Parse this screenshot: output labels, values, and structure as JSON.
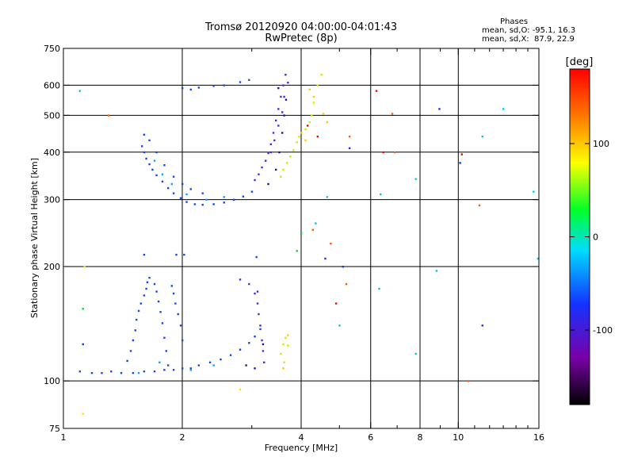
{
  "chart_data": {
    "type": "scatter",
    "title": "Tromsø 20120920 04:00:00-04:01:43",
    "subtitle": "RwPretec (8p)",
    "xlabel": "Frequency [MHz]",
    "ylabel": "Stationary phase Virtual Height [km]",
    "xscale": "log",
    "yscale": "log",
    "xlim": [
      1,
      16
    ],
    "ylim": [
      75,
      750
    ],
    "x_ticks": [
      {
        "value": 1,
        "label": "1"
      },
      {
        "value": 2,
        "label": "2"
      },
      {
        "value": 4,
        "label": "4"
      },
      {
        "value": 6,
        "label": "6"
      },
      {
        "value": 8,
        "label": "8"
      },
      {
        "value": 10,
        "label": "10"
      },
      {
        "value": 16,
        "label": "16"
      }
    ],
    "x_minor_ticks": [
      3,
      5,
      7,
      9,
      11,
      12,
      13,
      14,
      15
    ],
    "y_ticks": [
      {
        "value": 75,
        "label": "75"
      },
      {
        "value": 100,
        "label": "100"
      },
      {
        "value": 200,
        "label": "200"
      },
      {
        "value": 300,
        "label": "300"
      },
      {
        "value": 400,
        "label": "400"
      },
      {
        "value": 500,
        "label": "500"
      },
      {
        "value": 600,
        "label": "600"
      },
      {
        "value": 750,
        "label": "750"
      }
    ],
    "grid_x": [
      2,
      4,
      6,
      8,
      10
    ],
    "grid_y": [
      100,
      200,
      300,
      400,
      500,
      600
    ],
    "stats": {
      "heading": "Phases",
      "line1": "mean, sd,O: -95.1, 16.3",
      "line2": "mean, sd,X:  87.9, 22.9"
    },
    "colorbar": {
      "label": "[deg]",
      "range": [
        -180,
        180
      ],
      "ticks": [
        {
          "value": 100,
          "label": "100"
        },
        {
          "value": 0,
          "label": "0"
        },
        {
          "value": -100,
          "label": "-100"
        }
      ],
      "colors": [
        "#000000",
        "#7a00a8",
        "#1432ff",
        "#00dcff",
        "#00ff28",
        "#ffff00",
        "#ff7800",
        "#ff0000"
      ]
    },
    "series": [
      {
        "color": "#1446ee",
        "points": [
          [
            1.1,
            106
          ],
          [
            1.18,
            105
          ],
          [
            1.25,
            105
          ],
          [
            1.32,
            106
          ],
          [
            1.4,
            105
          ],
          [
            1.5,
            105
          ],
          [
            1.6,
            106
          ],
          [
            1.7,
            106
          ],
          [
            1.8,
            107
          ],
          [
            1.9,
            107
          ],
          [
            2.0,
            108
          ],
          [
            2.1,
            108
          ],
          [
            2.2,
            110
          ],
          [
            2.35,
            112
          ],
          [
            2.5,
            114
          ],
          [
            2.65,
            117
          ],
          [
            2.8,
            121
          ],
          [
            2.95,
            126
          ],
          [
            3.05,
            131
          ],
          [
            3.15,
            137
          ],
          [
            1.45,
            113
          ],
          [
            1.48,
            120
          ],
          [
            1.5,
            128
          ],
          [
            1.52,
            136
          ],
          [
            1.53,
            145
          ],
          [
            1.55,
            153
          ],
          [
            1.57,
            160
          ],
          [
            1.6,
            168
          ],
          [
            1.62,
            175
          ],
          [
            1.63,
            182
          ],
          [
            1.65,
            187
          ],
          [
            1.7,
            180
          ],
          [
            1.72,
            172
          ],
          [
            1.74,
            162
          ],
          [
            1.76,
            152
          ],
          [
            1.78,
            142
          ],
          [
            1.8,
            130
          ],
          [
            1.82,
            120
          ],
          [
            1.84,
            110
          ],
          [
            1.88,
            178
          ],
          [
            1.9,
            170
          ],
          [
            1.92,
            160
          ],
          [
            1.95,
            150
          ],
          [
            1.98,
            140
          ],
          [
            2.0,
            128
          ],
          [
            1.58,
            415
          ],
          [
            1.6,
            400
          ],
          [
            1.62,
            385
          ],
          [
            1.65,
            372
          ],
          [
            1.68,
            360
          ],
          [
            1.72,
            348
          ],
          [
            1.78,
            335
          ],
          [
            1.84,
            322
          ],
          [
            1.9,
            312
          ],
          [
            1.98,
            303
          ],
          [
            2.05,
            296
          ],
          [
            2.15,
            292
          ],
          [
            2.25,
            291
          ],
          [
            2.4,
            292
          ],
          [
            2.55,
            295
          ],
          [
            2.7,
            300
          ],
          [
            2.85,
            306
          ],
          [
            3.0,
            315
          ],
          [
            1.6,
            445
          ],
          [
            1.65,
            430
          ],
          [
            1.72,
            400
          ],
          [
            1.8,
            370
          ],
          [
            1.9,
            345
          ],
          [
            2.0,
            330
          ],
          [
            2.1,
            320
          ],
          [
            2.25,
            312
          ],
          [
            2.0,
            590
          ],
          [
            2.1,
            585
          ],
          [
            2.2,
            592
          ],
          [
            2.4,
            598
          ],
          [
            2.55,
            600
          ],
          [
            2.8,
            612
          ],
          [
            2.95,
            620
          ],
          [
            1.6,
            215
          ],
          [
            1.93,
            215
          ],
          [
            2.02,
            215
          ],
          [
            3.08,
            212
          ]
        ]
      },
      {
        "color": "#4a2ae0",
        "points": [
          [
            3.05,
            338
          ],
          [
            3.12,
            350
          ],
          [
            3.18,
            365
          ],
          [
            3.25,
            380
          ],
          [
            3.3,
            398
          ],
          [
            3.35,
            420
          ],
          [
            3.4,
            450
          ],
          [
            3.45,
            485
          ],
          [
            3.5,
            520
          ],
          [
            3.55,
            560
          ],
          [
            3.6,
            600
          ],
          [
            3.65,
            640
          ],
          [
            3.35,
            400
          ],
          [
            3.42,
            430
          ],
          [
            3.5,
            470
          ],
          [
            3.58,
            510
          ],
          [
            3.62,
            560
          ],
          [
            3.7,
            610
          ],
          [
            3.05,
            170
          ],
          [
            3.1,
            160
          ],
          [
            3.12,
            150
          ],
          [
            3.15,
            140
          ],
          [
            3.18,
            128
          ],
          [
            3.2,
            120
          ],
          [
            3.22,
            112
          ],
          [
            2.8,
            185
          ],
          [
            2.95,
            180
          ],
          [
            3.1,
            172
          ]
        ]
      },
      {
        "color": "#2a10a0",
        "points": [
          [
            3.3,
            330
          ],
          [
            3.45,
            360
          ],
          [
            3.52,
            400
          ],
          [
            3.58,
            450
          ],
          [
            3.62,
            500
          ],
          [
            3.66,
            550
          ],
          [
            3.5,
            590
          ],
          [
            2.9,
            110
          ],
          [
            3.05,
            108
          ],
          [
            3.2,
            125
          ]
        ]
      },
      {
        "color": "#00a8ff",
        "points": [
          [
            1.7,
            380
          ],
          [
            1.78,
            350
          ],
          [
            1.88,
            330
          ],
          [
            2.05,
            310
          ],
          [
            2.3,
            300
          ],
          [
            2.55,
            305
          ],
          [
            1.55,
            105
          ],
          [
            1.75,
            112
          ],
          [
            2.1,
            107
          ],
          [
            2.4,
            110
          ]
        ]
      },
      {
        "color": "#c8ee00",
        "points": [
          [
            3.55,
            345
          ],
          [
            3.6,
            360
          ],
          [
            3.68,
            375
          ],
          [
            3.75,
            390
          ],
          [
            3.82,
            405
          ],
          [
            3.9,
            425
          ],
          [
            3.95,
            440
          ],
          [
            4.1,
            460
          ],
          [
            4.2,
            480
          ],
          [
            4.25,
            500
          ],
          [
            4.3,
            540
          ],
          [
            4.4,
            600
          ],
          [
            4.5,
            640
          ],
          [
            3.55,
            118
          ],
          [
            3.6,
            125
          ],
          [
            3.65,
            130
          ],
          [
            3.7,
            124
          ],
          [
            3.62,
            112
          ]
        ]
      },
      {
        "color": "#ffc800",
        "points": [
          [
            4.2,
            585
          ],
          [
            4.3,
            560
          ],
          [
            4.55,
            505
          ],
          [
            4.65,
            480
          ],
          [
            4.0,
            450
          ],
          [
            4.1,
            430
          ],
          [
            3.7,
            132
          ],
          [
            3.6,
            108
          ]
        ]
      },
      {
        "color": "#ff5a00",
        "points": [
          [
            1.3,
            500
          ],
          [
            4.28,
            250
          ],
          [
            4.75,
            230
          ],
          [
            5.2,
            180
          ],
          [
            10.6,
            100
          ],
          [
            11.3,
            290
          ],
          [
            6.9,
            400
          ],
          [
            6.8,
            505
          ],
          [
            5.3,
            440
          ]
        ]
      },
      {
        "color": "#ff0000",
        "points": [
          [
            4.15,
            470
          ],
          [
            4.4,
            440
          ],
          [
            4.9,
            160
          ],
          [
            6.45,
            400
          ],
          [
            10.2,
            395
          ],
          [
            6.2,
            580
          ]
        ]
      },
      {
        "color": "#00c8e8",
        "points": [
          [
            4.35,
            260
          ],
          [
            4.65,
            305
          ],
          [
            5.0,
            140
          ],
          [
            6.35,
            310
          ],
          [
            7.8,
            340
          ],
          [
            8.8,
            195
          ],
          [
            11.5,
            440
          ],
          [
            13.0,
            520
          ],
          [
            15.5,
            315
          ],
          [
            15.9,
            210
          ],
          [
            6.3,
            175
          ],
          [
            7.8,
            118
          ],
          [
            1.1,
            580
          ]
        ]
      },
      {
        "color": "#1432ff",
        "points": [
          [
            8.95,
            520
          ],
          [
            10.1,
            375
          ],
          [
            11.5,
            140
          ],
          [
            5.3,
            410
          ],
          [
            5.1,
            200
          ],
          [
            4.6,
            210
          ],
          [
            1.12,
            125
          ]
        ]
      },
      {
        "color": "#00dd30",
        "points": [
          [
            1.12,
            155
          ],
          [
            4.0,
            245
          ],
          [
            3.9,
            220
          ]
        ]
      },
      {
        "color": "#ffe000",
        "points": [
          [
            1.12,
            82
          ],
          [
            1.13,
            200
          ],
          [
            2.8,
            95
          ]
        ]
      }
    ]
  }
}
